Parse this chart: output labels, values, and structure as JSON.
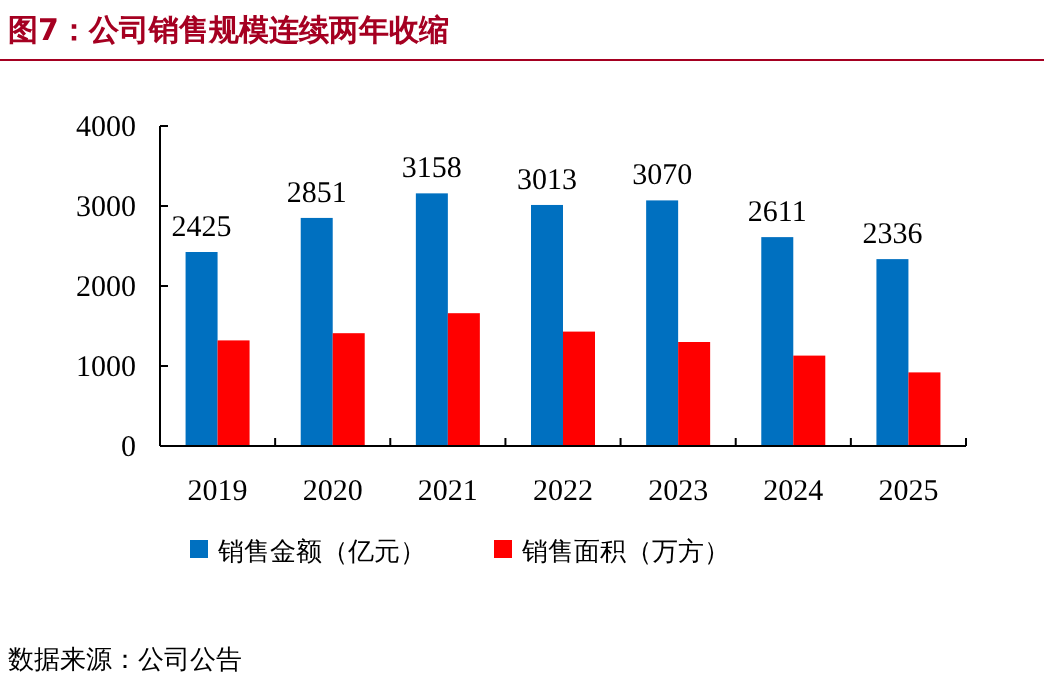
{
  "chart_data": {
    "type": "bar",
    "title": "图7：公司销售规模连续两年收缩",
    "categories": [
      "2019",
      "2020",
      "2021",
      "2022",
      "2023",
      "2024",
      "2025"
    ],
    "series": [
      {
        "name": "销售金额（亿元）",
        "color": "#0070c0",
        "values": [
          2425,
          2851,
          3158,
          3013,
          3070,
          2611,
          2336
        ],
        "value_labels": [
          "2425",
          "2851",
          "3158",
          "3013",
          "3070",
          "2611",
          "2336"
        ]
      },
      {
        "name": "销售面积（万方）",
        "color": "#ff0000",
        "values": [
          1320,
          1410,
          1660,
          1430,
          1300,
          1130,
          920
        ]
      }
    ],
    "ylim": [
      0,
      4000
    ],
    "yticks": [
      0,
      1000,
      2000,
      3000,
      4000
    ],
    "grid": false,
    "legend": "bottom",
    "annotations": [
      "数据来源：公司公告"
    ]
  }
}
